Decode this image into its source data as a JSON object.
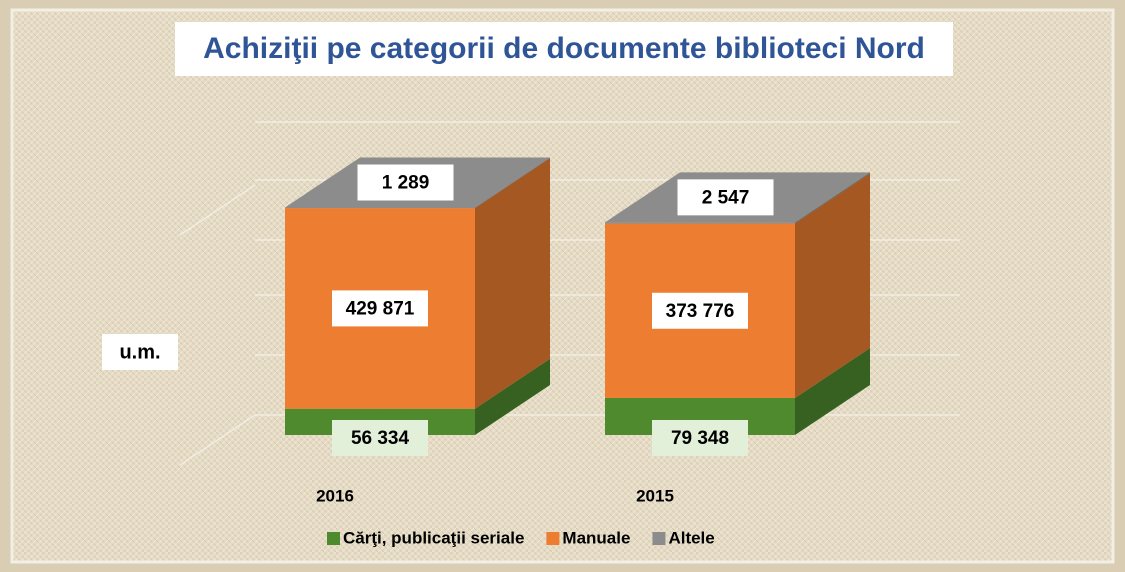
{
  "chart_data": {
    "type": "bar3d_stacked",
    "title": "Achiziţii pe categorii de documente biblioteci Nord",
    "y_label": "u.m.",
    "categories": [
      "2016",
      "2015"
    ],
    "series": [
      {
        "name": "Cărţi, publicaţii seriale",
        "color": "#4f8a2f",
        "values": [
          56334,
          79348
        ],
        "value_labels": [
          "56 334",
          "79 348"
        ]
      },
      {
        "name": "Manuale",
        "color": "#ed7d31",
        "values": [
          429871,
          373776
        ],
        "value_labels": [
          "429 871",
          "373 776"
        ]
      },
      {
        "name": "Altele",
        "color": "#8c8c8c",
        "values": [
          1289,
          2547
        ],
        "value_labels": [
          "1 289",
          "2 547"
        ]
      }
    ],
    "ylim": [
      0,
      600000
    ],
    "legend": "bottom"
  }
}
